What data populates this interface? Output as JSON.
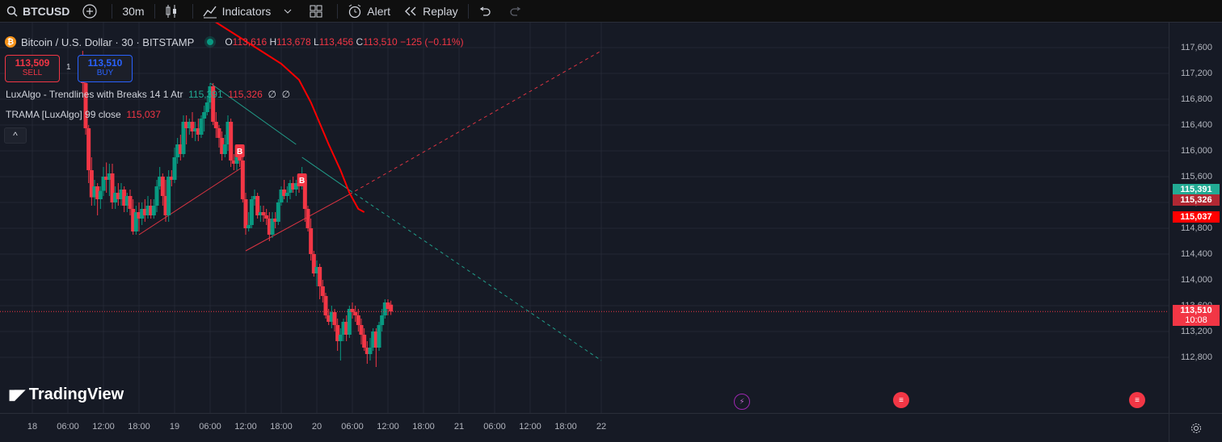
{
  "toolbar": {
    "symbol": "BTCUSD",
    "interval": "30m",
    "indicators_label": "Indicators",
    "alert_label": "Alert",
    "replay_label": "Replay"
  },
  "legend": {
    "title": "Bitcoin / U.S. Dollar · 30 · BITSTAMP",
    "btc_symbol": "₿",
    "o_key": "O",
    "o_val": "113,616",
    "h_key": "H",
    "h_val": "113,678",
    "l_key": "L",
    "l_val": "113,456",
    "c_key": "C",
    "c_val": "113,510",
    "change": "−125 (−0.11%)"
  },
  "trade": {
    "sell_price": "113,509",
    "sell_label": "SELL",
    "spread": "1",
    "buy_price": "113,510",
    "buy_label": "BUY"
  },
  "indicators": {
    "ind1_name": "LuxAlgo - Trendlines with Breaks 14 1 Atr",
    "ind1_v1": "115,391",
    "ind1_v2": "115,326",
    "ind1_v3": "∅",
    "ind1_v4": "∅",
    "ind2_name": "TRAMA [LuxAlgo] 99 close",
    "ind2_v1": "115,037",
    "collapse": "^"
  },
  "logo_text": "TradingView",
  "y_axis": [
    "117,600",
    "117,200",
    "116,800",
    "116,400",
    "116,000",
    "115,600",
    "115,200",
    "114,800",
    "114,400",
    "114,000",
    "113,600",
    "113,200",
    "112,800"
  ],
  "x_axis": [
    "18",
    "06:00",
    "12:00",
    "18:00",
    "19",
    "06:00",
    "12:00",
    "18:00",
    "20",
    "06:00",
    "12:00",
    "18:00",
    "21",
    "06:00",
    "12:00",
    "18:00",
    "22"
  ],
  "price_tags": {
    "upper_trend": "115,391",
    "lower_trend": "115,326",
    "trama": "115,037",
    "last_price": "113,510",
    "countdown": "10:08"
  },
  "break_markers": [
    "B",
    "B"
  ],
  "colors": {
    "up": "#089981",
    "down": "#f23645",
    "trama": "#ff0000",
    "bg": "#161a25"
  },
  "chart_data": {
    "type": "candlestick",
    "symbol": "BTCUSD",
    "timeframe": "30",
    "ylim": [
      112500,
      117850
    ],
    "candles": [
      {
        "t": "18 08:30",
        "o": 117380,
        "h": 117550,
        "c": 117050,
        "l": 116900
      },
      {
        "t": "18 09:00",
        "o": 117050,
        "h": 117100,
        "c": 116350,
        "l": 116250
      },
      {
        "t": "18 09:30",
        "o": 116350,
        "h": 116400,
        "c": 115700,
        "l": 115500
      },
      {
        "t": "18 10:00",
        "o": 115700,
        "h": 115900,
        "c": 115280,
        "l": 115150
      },
      {
        "t": "18 10:30",
        "o": 115280,
        "h": 115550,
        "c": 115450,
        "l": 115150
      },
      {
        "t": "18 11:00",
        "o": 115450,
        "h": 115500,
        "c": 115250,
        "l": 115000
      },
      {
        "t": "18 11:30",
        "o": 115250,
        "h": 115450,
        "c": 115380,
        "l": 115100
      },
      {
        "t": "18 12:00",
        "o": 115380,
        "h": 115750,
        "c": 115600,
        "l": 115300
      },
      {
        "t": "18 12:30",
        "o": 115600,
        "h": 115820,
        "c": 115550,
        "l": 115350
      },
      {
        "t": "18 13:00",
        "o": 115550,
        "h": 115800,
        "c": 115650,
        "l": 115300
      },
      {
        "t": "18 13:30",
        "o": 115650,
        "h": 115800,
        "c": 115200,
        "l": 115100
      },
      {
        "t": "18 14:00",
        "o": 115200,
        "h": 115450,
        "c": 115350,
        "l": 115100
      },
      {
        "t": "18 14:30",
        "o": 115350,
        "h": 115500,
        "c": 115250,
        "l": 115150
      },
      {
        "t": "18 15:00",
        "o": 115250,
        "h": 115500,
        "c": 115400,
        "l": 115150
      },
      {
        "t": "18 15:30",
        "o": 115400,
        "h": 115450,
        "c": 115150,
        "l": 115050
      },
      {
        "t": "18 16:00",
        "o": 115150,
        "h": 115350,
        "c": 115300,
        "l": 115050
      },
      {
        "t": "18 16:30",
        "o": 115300,
        "h": 115400,
        "c": 115100,
        "l": 115000
      },
      {
        "t": "18 17:00",
        "o": 115100,
        "h": 115250,
        "c": 114750,
        "l": 114700
      },
      {
        "t": "18 17:30",
        "o": 114750,
        "h": 115150,
        "c": 115050,
        "l": 114700
      },
      {
        "t": "18 18:00",
        "o": 115050,
        "h": 115200,
        "c": 114950,
        "l": 114750
      },
      {
        "t": "18 18:30",
        "o": 114950,
        "h": 115200,
        "c": 115100,
        "l": 114850
      },
      {
        "t": "18 19:00",
        "o": 115100,
        "h": 115250,
        "c": 115000,
        "l": 114900
      },
      {
        "t": "18 19:30",
        "o": 115000,
        "h": 115300,
        "c": 115150,
        "l": 114950
      },
      {
        "t": "18 20:00",
        "o": 115150,
        "h": 115250,
        "c": 115000,
        "l": 114950
      },
      {
        "t": "18 20:30",
        "o": 115000,
        "h": 115250,
        "c": 115150,
        "l": 114950
      },
      {
        "t": "18 21:00",
        "o": 115150,
        "h": 115550,
        "c": 115450,
        "l": 115050
      },
      {
        "t": "18 21:30",
        "o": 115450,
        "h": 115750,
        "c": 115600,
        "l": 115400
      },
      {
        "t": "18 22:00",
        "o": 115600,
        "h": 115650,
        "c": 115300,
        "l": 115150
      },
      {
        "t": "18 22:30",
        "o": 115300,
        "h": 115550,
        "c": 115000,
        "l": 114900
      },
      {
        "t": "18 23:00",
        "o": 115000,
        "h": 115700,
        "c": 115600,
        "l": 114900
      },
      {
        "t": "18 23:30",
        "o": 115600,
        "h": 115700,
        "c": 115550,
        "l": 115450
      },
      {
        "t": "19 00:00",
        "o": 115550,
        "h": 116050,
        "c": 115900,
        "l": 115500
      },
      {
        "t": "19 00:30",
        "o": 115900,
        "h": 116200,
        "c": 116100,
        "l": 115800
      },
      {
        "t": "19 01:00",
        "o": 116100,
        "h": 116250,
        "c": 115950,
        "l": 115850
      },
      {
        "t": "19 01:30",
        "o": 115950,
        "h": 116550,
        "c": 116450,
        "l": 115900
      },
      {
        "t": "19 02:00",
        "o": 116450,
        "h": 116550,
        "c": 116350,
        "l": 116100
      },
      {
        "t": "19 02:30",
        "o": 116350,
        "h": 116500,
        "c": 116450,
        "l": 116250
      },
      {
        "t": "19 03:00",
        "o": 116450,
        "h": 116600,
        "c": 116300,
        "l": 116200
      },
      {
        "t": "19 03:30",
        "o": 116300,
        "h": 116450,
        "c": 116350,
        "l": 116150
      },
      {
        "t": "19 04:00",
        "o": 116350,
        "h": 116500,
        "c": 116250,
        "l": 116150
      },
      {
        "t": "19 04:30",
        "o": 116250,
        "h": 116550,
        "c": 116500,
        "l": 116200
      },
      {
        "t": "19 05:00",
        "o": 116500,
        "h": 116700,
        "c": 116600,
        "l": 116300
      },
      {
        "t": "19 05:30",
        "o": 116600,
        "h": 116850,
        "c": 116750,
        "l": 116550
      },
      {
        "t": "19 06:00",
        "o": 116750,
        "h": 117050,
        "c": 117000,
        "l": 116650
      },
      {
        "t": "19 06:30",
        "o": 117000,
        "h": 117050,
        "c": 116450,
        "l": 116400
      },
      {
        "t": "19 07:00",
        "o": 116450,
        "h": 116600,
        "c": 116350,
        "l": 116200
      },
      {
        "t": "19 07:30",
        "o": 116350,
        "h": 116400,
        "c": 116200,
        "l": 116050
      },
      {
        "t": "19 08:00",
        "o": 116200,
        "h": 116300,
        "c": 115950,
        "l": 115850
      },
      {
        "t": "19 08:30",
        "o": 115950,
        "h": 116250,
        "c": 116100,
        "l": 115900
      },
      {
        "t": "19 09:00",
        "o": 116100,
        "h": 116550,
        "c": 116450,
        "l": 116000
      },
      {
        "t": "19 09:30",
        "o": 116450,
        "h": 116500,
        "c": 115850,
        "l": 115750
      },
      {
        "t": "19 10:00",
        "o": 115850,
        "h": 115950,
        "c": 115800,
        "l": 115700
      },
      {
        "t": "19 10:30",
        "o": 115800,
        "h": 116000,
        "c": 115950,
        "l": 115700
      },
      {
        "t": "19 11:00",
        "o": 115950,
        "h": 116050,
        "c": 115850,
        "l": 115750
      },
      {
        "t": "19 11:30",
        "o": 115850,
        "h": 115950,
        "c": 115250,
        "l": 115200
      },
      {
        "t": "19 12:00",
        "o": 115250,
        "h": 115350,
        "c": 114800,
        "l": 114700
      },
      {
        "t": "19 12:30",
        "o": 114800,
        "h": 115050,
        "c": 114850,
        "l": 114750
      },
      {
        "t": "19 13:00",
        "o": 114850,
        "h": 115300,
        "c": 115250,
        "l": 114800
      },
      {
        "t": "19 13:30",
        "o": 115250,
        "h": 115400,
        "c": 115300,
        "l": 115150
      },
      {
        "t": "19 14:00",
        "o": 115300,
        "h": 115350,
        "c": 115000,
        "l": 114950
      },
      {
        "t": "19 14:30",
        "o": 115000,
        "h": 115150,
        "c": 115050,
        "l": 114900
      },
      {
        "t": "19 15:00",
        "o": 115050,
        "h": 115150,
        "c": 115000,
        "l": 114900
      },
      {
        "t": "19 15:30",
        "o": 115000,
        "h": 115100,
        "c": 114950,
        "l": 114850
      },
      {
        "t": "19 16:00",
        "o": 114950,
        "h": 115050,
        "c": 114700,
        "l": 114600
      },
      {
        "t": "19 16:30",
        "o": 114700,
        "h": 115050,
        "c": 114950,
        "l": 114650
      },
      {
        "t": "19 17:00",
        "o": 114950,
        "h": 115050,
        "c": 114900,
        "l": 114800
      },
      {
        "t": "19 17:30",
        "o": 114900,
        "h": 115250,
        "c": 115200,
        "l": 114850
      },
      {
        "t": "19 18:00",
        "o": 115200,
        "h": 115450,
        "c": 115400,
        "l": 115150
      },
      {
        "t": "19 18:30",
        "o": 115400,
        "h": 115550,
        "c": 115300,
        "l": 115250
      },
      {
        "t": "19 19:00",
        "o": 115300,
        "h": 115450,
        "c": 115350,
        "l": 115200
      },
      {
        "t": "19 19:30",
        "o": 115350,
        "h": 115550,
        "c": 115500,
        "l": 115250
      },
      {
        "t": "19 20:00",
        "o": 115500,
        "h": 115600,
        "c": 115400,
        "l": 115350
      },
      {
        "t": "19 20:30",
        "o": 115400,
        "h": 115550,
        "c": 115500,
        "l": 115300
      },
      {
        "t": "19 21:00",
        "o": 115500,
        "h": 115550,
        "c": 115450,
        "l": 115350
      },
      {
        "t": "19 21:30",
        "o": 115450,
        "h": 115750,
        "c": 115550,
        "l": 115400
      },
      {
        "t": "19 22:00",
        "o": 115550,
        "h": 115600,
        "c": 115100,
        "l": 114900
      },
      {
        "t": "19 22:30",
        "o": 115100,
        "h": 115150,
        "c": 114800,
        "l": 114750
      },
      {
        "t": "19 23:00",
        "o": 114800,
        "h": 114950,
        "c": 114400,
        "l": 114300
      },
      {
        "t": "19 23:30",
        "o": 114400,
        "h": 114450,
        "c": 114100,
        "l": 114050
      },
      {
        "t": "20 00:00",
        "o": 114100,
        "h": 114300,
        "c": 114200,
        "l": 113900
      },
      {
        "t": "20 00:30",
        "o": 114200,
        "h": 114250,
        "c": 113900,
        "l": 113700
      },
      {
        "t": "20 01:00",
        "o": 113900,
        "h": 114000,
        "c": 113750,
        "l": 113650
      },
      {
        "t": "20 01:30",
        "o": 113750,
        "h": 113800,
        "c": 113450,
        "l": 113400
      },
      {
        "t": "20 02:00",
        "o": 113450,
        "h": 113550,
        "c": 113350,
        "l": 113300
      },
      {
        "t": "20 02:30",
        "o": 113350,
        "h": 113600,
        "c": 113500,
        "l": 113250
      },
      {
        "t": "20 03:00",
        "o": 113500,
        "h": 113550,
        "c": 113300,
        "l": 113200
      },
      {
        "t": "20 03:30",
        "o": 113300,
        "h": 113400,
        "c": 113050,
        "l": 112900
      },
      {
        "t": "20 04:00",
        "o": 113050,
        "h": 113250,
        "c": 113150,
        "l": 112750
      },
      {
        "t": "20 04:30",
        "o": 113150,
        "h": 113400,
        "c": 113350,
        "l": 113050
      },
      {
        "t": "20 05:00",
        "o": 113350,
        "h": 113450,
        "c": 113150,
        "l": 113050
      },
      {
        "t": "20 05:30",
        "o": 113150,
        "h": 113600,
        "c": 113550,
        "l": 113100
      },
      {
        "t": "20 06:00",
        "o": 113550,
        "h": 113650,
        "c": 113500,
        "l": 113400
      },
      {
        "t": "20 06:30",
        "o": 113500,
        "h": 113600,
        "c": 113450,
        "l": 113350
      },
      {
        "t": "20 07:00",
        "o": 113450,
        "h": 113550,
        "c": 113300,
        "l": 113200
      },
      {
        "t": "20 07:30",
        "o": 113300,
        "h": 113400,
        "c": 113150,
        "l": 113000
      },
      {
        "t": "20 08:00",
        "o": 113150,
        "h": 113250,
        "c": 112950,
        "l": 112900
      },
      {
        "t": "20 08:30",
        "o": 112950,
        "h": 113050,
        "c": 112850,
        "l": 112700
      },
      {
        "t": "20 09:00",
        "o": 112850,
        "h": 113100,
        "c": 112950,
        "l": 112750
      },
      {
        "t": "20 09:30",
        "o": 112950,
        "h": 113250,
        "c": 113200,
        "l": 112900
      },
      {
        "t": "20 10:00",
        "o": 113200,
        "h": 113250,
        "c": 112950,
        "l": 112650
      },
      {
        "t": "20 10:30",
        "o": 112950,
        "h": 113350,
        "c": 113300,
        "l": 112900
      },
      {
        "t": "20 11:00",
        "o": 113300,
        "h": 113550,
        "c": 113450,
        "l": 113200
      },
      {
        "t": "20 11:30",
        "o": 113450,
        "h": 113700,
        "c": 113650,
        "l": 113400
      },
      {
        "t": "20 12:00",
        "o": 113650,
        "h": 113700,
        "c": 113550,
        "l": 113450
      },
      {
        "t": "20 12:30",
        "o": 113616,
        "h": 113678,
        "c": 113510,
        "l": 113456
      }
    ],
    "trama": [
      {
        "t": "18 18:00",
        "v": 118300
      },
      {
        "t": "19 06:00",
        "v": 118050
      },
      {
        "t": "19 12:00",
        "v": 117700
      },
      {
        "t": "19 18:00",
        "v": 117350
      },
      {
        "t": "19 21:00",
        "v": 117100
      },
      {
        "t": "19 23:00",
        "v": 116750
      },
      {
        "t": "20 02:00",
        "v": 116100
      },
      {
        "t": "20 04:00",
        "v": 115700
      },
      {
        "t": "20 05:30",
        "v": 115350
      },
      {
        "t": "20 07:00",
        "v": 115100
      },
      {
        "t": "20 08:00",
        "v": 115050
      }
    ],
    "trendlines": {
      "upper": [
        {
          "from": {
            "t": "19 06:00",
            "v": 117050
          },
          "to": {
            "t": "19 20:30",
            "v": 116100
          },
          "style": "solid",
          "color": "#22ab94"
        },
        {
          "from": {
            "t": "19 21:30",
            "v": 115900
          },
          "to": {
            "t": "20 05:30",
            "v": 115391
          },
          "style": "solid",
          "color": "#22ab94"
        },
        {
          "from": {
            "t": "20 05:30",
            "v": 115391
          },
          "to": {
            "t": "22 00:00",
            "v": 112750
          },
          "style": "dashed",
          "color": "#22ab94"
        }
      ],
      "lower": [
        {
          "from": {
            "t": "18 18:00",
            "v": 114700
          },
          "to": {
            "t": "19 11:30",
            "v": 115750
          },
          "style": "solid",
          "color": "#f23645"
        },
        {
          "from": {
            "t": "19 12:00",
            "v": 114450
          },
          "to": {
            "t": "20 05:30",
            "v": 115326
          },
          "style": "solid",
          "color": "#f23645"
        },
        {
          "from": {
            "t": "20 05:30",
            "v": 115326
          },
          "to": {
            "t": "22 00:00",
            "v": 117550
          },
          "style": "dashed",
          "color": "#f23645"
        }
      ]
    },
    "break_markers": [
      {
        "t": "19 11:00",
        "v": 116000,
        "label": "B"
      },
      {
        "t": "19 21:30",
        "v": 115550,
        "label": "B"
      }
    ]
  }
}
